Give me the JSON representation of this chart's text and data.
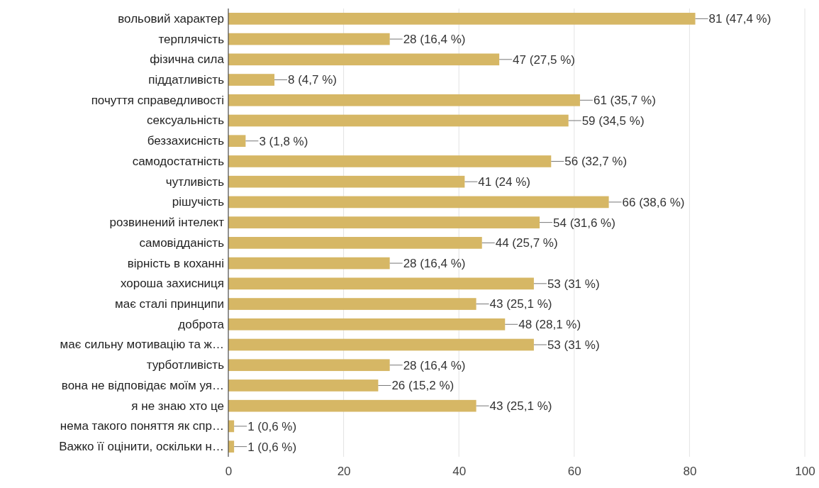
{
  "chart_data": {
    "type": "bar",
    "orientation": "horizontal",
    "categories": [
      "вольовий характер",
      "терплячість",
      "фізична сила",
      "піддатливість",
      "почуття справедливості",
      "сексуальність",
      "беззахисність",
      "самодостатність",
      "чутливість",
      "рішучість",
      "розвинений інтелект",
      "самовідданість",
      "вірність в коханні",
      "хороша захисниця",
      "має сталі принципи",
      "доброта",
      "має сильну мотивацію та ж…",
      "турботливість",
      "вона не відповідає моїм уя…",
      "я не знаю хто це",
      "нема такого поняття як спр…",
      "Важко її оцінити, оскільки н…"
    ],
    "values": [
      81,
      28,
      47,
      8,
      61,
      59,
      3,
      56,
      41,
      66,
      54,
      44,
      28,
      53,
      43,
      48,
      53,
      28,
      26,
      43,
      1,
      1
    ],
    "value_labels": [
      "81 (47,4 %)",
      "28 (16,4 %)",
      "47 (27,5 %)",
      "8 (4,7 %)",
      "61 (35,7 %)",
      "59 (34,5 %)",
      "3 (1,8 %)",
      "56 (32,7 %)",
      "41 (24 %)",
      "66 (38,6 %)",
      "54 (31,6 %)",
      "44 (25,7 %)",
      "28 (16,4 %)",
      "53 (31 %)",
      "43 (25,1 %)",
      "48 (28,1 %)",
      "53 (31 %)",
      "28 (16,4 %)",
      "26 (15,2 %)",
      "43 (25,1 %)",
      "1 (0,6 %)",
      "1 (0,6 %)"
    ],
    "color": "#d6b765",
    "xlim": [
      0,
      100
    ],
    "xticks": [
      0,
      20,
      40,
      60,
      80,
      100
    ],
    "grid": "x"
  }
}
